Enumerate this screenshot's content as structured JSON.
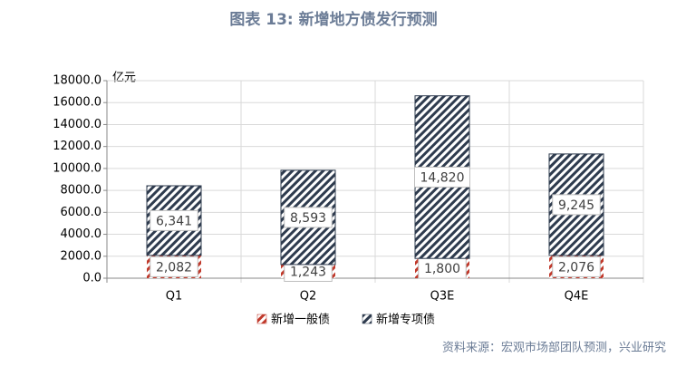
{
  "chart_data": {
    "type": "stacked-bar",
    "title": "图表 13: 新增地方债发行预测",
    "y_axis_label": "亿元",
    "source": "资料来源：宏观市场部团队预测，兴业研究",
    "categories": [
      "Q1",
      "Q2",
      "Q3E",
      "Q4E"
    ],
    "series": [
      {
        "name": "新增一般债",
        "color": "#c0392b",
        "values": [
          2082,
          1243,
          1800,
          2076
        ],
        "value_labels": [
          "2,082",
          "1,243",
          "1,800",
          "2,076"
        ]
      },
      {
        "name": "新增专项债",
        "color": "#2e3b4e",
        "values": [
          6341,
          8593,
          14820,
          9245
        ],
        "value_labels": [
          "6,341",
          "8,593",
          "14,820",
          "9,245"
        ]
      }
    ],
    "ylim": [
      0,
      18000
    ],
    "yticks": [
      {
        "value": 0,
        "label": "0.0"
      },
      {
        "value": 2000,
        "label": "2000.0"
      },
      {
        "value": 4000,
        "label": "4000.0"
      },
      {
        "value": 6000,
        "label": "6000.0"
      },
      {
        "value": 8000,
        "label": "8000.0"
      },
      {
        "value": 10000,
        "label": "10000.0"
      },
      {
        "value": 12000,
        "label": "12000.0"
      },
      {
        "value": 14000,
        "label": "14000.0"
      },
      {
        "value": 16000,
        "label": "16000.0"
      },
      {
        "value": 18000,
        "label": "18000.0"
      }
    ],
    "grid": true,
    "legend": "bottom"
  }
}
